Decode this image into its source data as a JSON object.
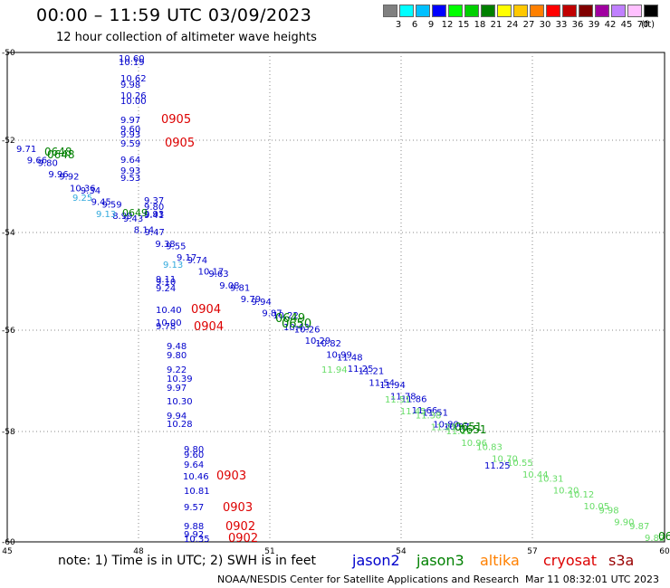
{
  "header": {
    "title": "00:00 – 11:59 UTC 03/09/2023",
    "subtitle": "12 hour collection of altimeter wave heights"
  },
  "scale": {
    "colors": [
      "#808080",
      "#00ffff",
      "#00c0ff",
      "#0000ff",
      "#00ff00",
      "#00d000",
      "#008000",
      "#ffff00",
      "#ffc800",
      "#ff8000",
      "#ff0000",
      "#c00000",
      "#800000",
      "#a000a0",
      "#c080ff",
      "#ffc0ff",
      "#000000"
    ],
    "labels": [
      "3",
      "6",
      "9",
      "12",
      "15",
      "18",
      "21",
      "24",
      "27",
      "30",
      "33",
      "36",
      "39",
      "42",
      "45",
      "70"
    ],
    "unit": "(ft)"
  },
  "axes": {
    "lat_labels": [
      "-50",
      "-52",
      "-54",
      "-56",
      "-58",
      "-60"
    ],
    "lon_labels": [
      "45",
      "48",
      "51",
      "54",
      "57",
      "60"
    ]
  },
  "map": {
    "colors": {
      "jason2": "#0000cc",
      "jason3": "#008000",
      "cryosat": "#dd0000",
      "light_blue": "#33aadd",
      "light_green": "#66dd66"
    },
    "track_numbers": [
      "9.71",
      "9.66",
      "9.80",
      "9.96",
      "9.92",
      "10.36",
      "9.34",
      "9.45",
      "9.59",
      "8.99",
      "9.43",
      "8.14",
      "9.47",
      "9.38",
      "9.55",
      "9.17",
      "9.74",
      "10.17",
      "9.63",
      "9.08",
      "9.81",
      "9.79",
      "9.94",
      "9.87",
      "10.22",
      "10.43",
      "10.26",
      "10.29",
      "10.82",
      "10.99",
      "11.48",
      "11.25",
      "11.21",
      "11.54",
      "11.94",
      "11.78",
      "11.86",
      "11.66",
      "11.51",
      "10.80",
      "10.97"
    ],
    "green_track_numbers": [
      "11.51",
      "11.45",
      "11.38",
      "11.25",
      "11.11",
      "10.96",
      "10.83",
      "10.70",
      "10.55",
      "10.44",
      "10.31",
      "10.20",
      "10.12",
      "10.05",
      "9.98",
      "9.90",
      "9.87",
      "9.82"
    ],
    "vertical_pass_1": [
      "10.60",
      "10.19",
      "10.62",
      "9.98",
      "10.26",
      "10.00",
      "9.97",
      "9.60",
      "9.93",
      "9.59",
      "9.64",
      "9.93",
      "9.53"
    ],
    "vertical_pass_1b": [
      "9.37",
      "9.80",
      "9.93",
      "9.41"
    ],
    "vertical_pass_2": [
      "9.11",
      "9.10",
      "9.24",
      "10.40",
      "10.00",
      "9.78",
      "9.48",
      "9.80",
      "9.22",
      "10.39",
      "9.97",
      "10.30",
      "9.94",
      "10.28"
    ],
    "vertical_pass_3": [
      "9.80",
      "9.60",
      "9.64",
      "10.46",
      "10.81",
      "9.57",
      "9.88",
      "9.92",
      "10.35"
    ],
    "isolated": {
      "track_lb_1": "9.25",
      "track_lb_2": "9.13",
      "track_lb_3": "9.13",
      "track_lg_1": "11.94",
      "track_lg_2": "11.25"
    },
    "time_labels": {
      "t1": "0905",
      "t2": "0905",
      "t3": "0904",
      "t4": "0904",
      "t5": "0903",
      "t6": "0903",
      "t7": "0902",
      "t8": "0902",
      "g1": "0648",
      "g2": "0648",
      "g3": "0649",
      "g4": "0650",
      "g5": "0650",
      "g6": "0651",
      "g7": "0651",
      "g8": "06",
      "g9": "0649"
    }
  },
  "footer": {
    "note": "note:  1) Time is in UTC;  2) SWH is in feet",
    "satellites": [
      {
        "name": "jason2",
        "color": "#0000cc"
      },
      {
        "name": "jason3",
        "color": "#008000"
      },
      {
        "name": "altika",
        "color": "#ff8000"
      },
      {
        "name": "cryosat",
        "color": "#dd0000"
      },
      {
        "name": "s3a",
        "color": "#990000"
      }
    ],
    "credit": "NOAA/NESDIS Center for Satellite Applications and Research",
    "timestamp": "Mar 11 08:32:01 UTC 2023"
  }
}
